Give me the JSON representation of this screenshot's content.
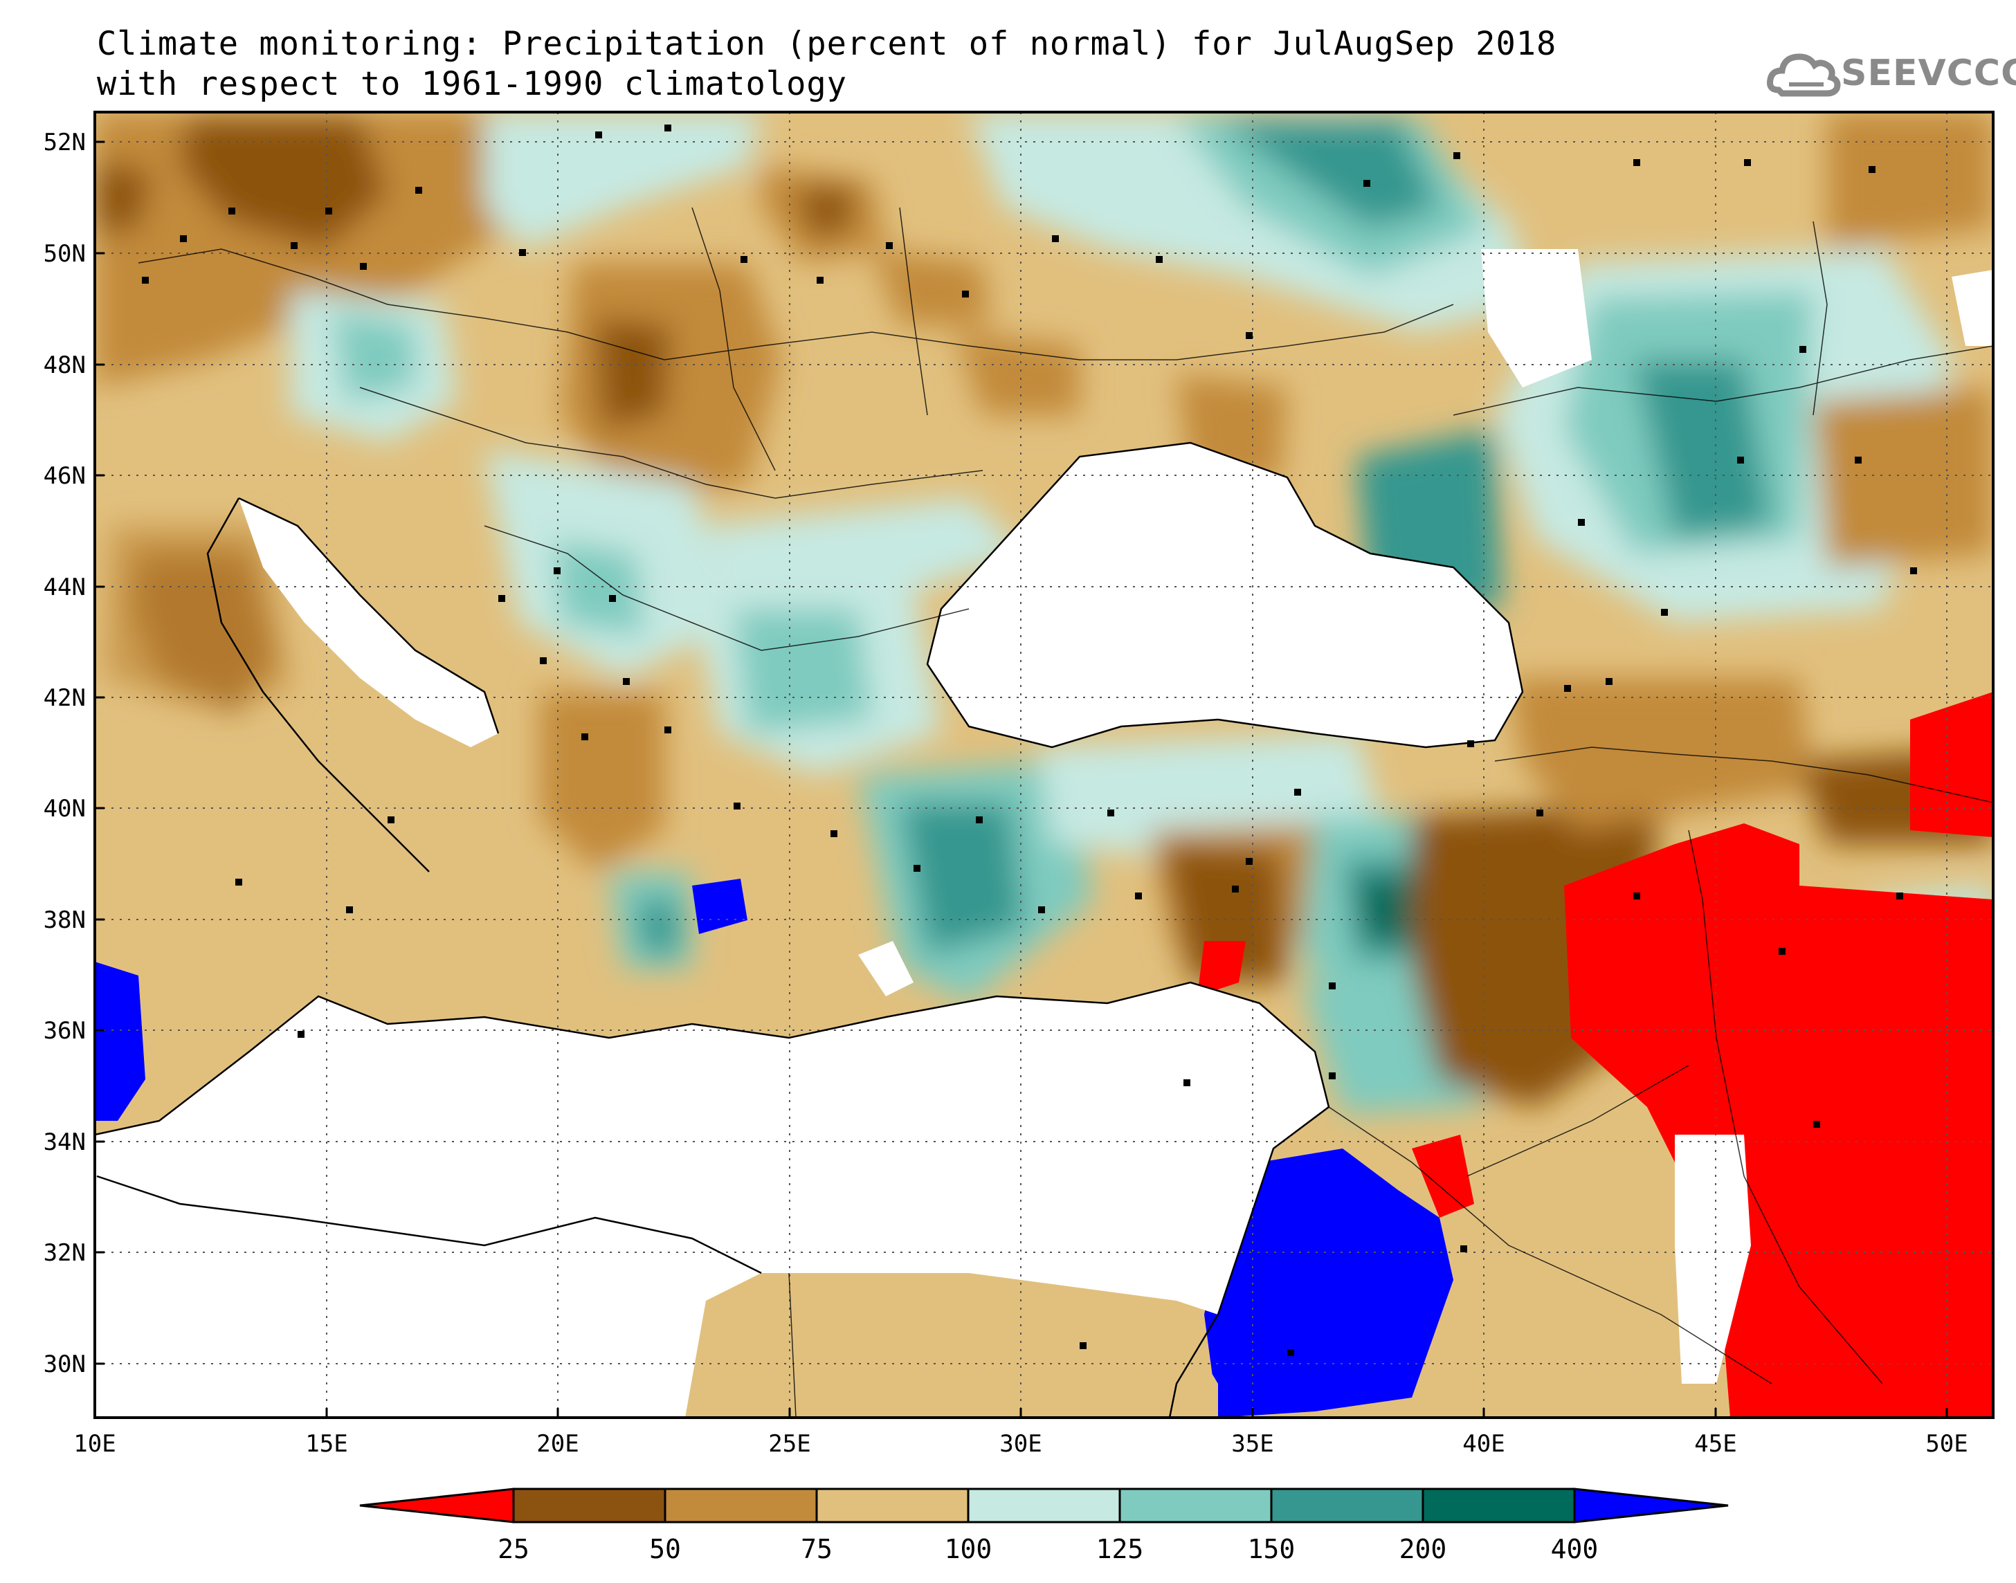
{
  "title": {
    "line1": "Climate monitoring: Precipitation (percent of normal) for JulAugSep 2018",
    "line2": "with respect to 1961-1990 climatology"
  },
  "logo": {
    "text": "SEEVCCC",
    "icon": "cloud-icon",
    "color": "#8a8a8a"
  },
  "map": {
    "lon_range": [
      10,
      51
    ],
    "lat_range": [
      29,
      52.5
    ],
    "x_ticks": [
      "10E",
      "15E",
      "20E",
      "25E",
      "30E",
      "35E",
      "40E",
      "45E",
      "50E"
    ],
    "y_ticks": [
      "52N",
      "50N",
      "48N",
      "46N",
      "44N",
      "42N",
      "40N",
      "38N",
      "36N",
      "34N",
      "32N",
      "30N"
    ],
    "grid": "dotted"
  },
  "colorbar": {
    "levels": [
      "25",
      "50",
      "75",
      "100",
      "125",
      "150",
      "200",
      "400"
    ],
    "colors": [
      "#ff0000",
      "#8c5210",
      "#c28a3b",
      "#e1c07e",
      "#c6e9e2",
      "#7fcbbf",
      "#35978f",
      "#006b5a",
      "#0000ff"
    ]
  },
  "legend_colors": {
    "lt25": "#ff0000",
    "c25_50": "#8c5210",
    "c50_75": "#c28a3b",
    "c75_100": "#e1c07e",
    "c100_125": "#c6e9e2",
    "c125_150": "#7fcbbf",
    "c150_200": "#35978f",
    "c200_400": "#006b5a",
    "gt400": "#0000ff"
  }
}
